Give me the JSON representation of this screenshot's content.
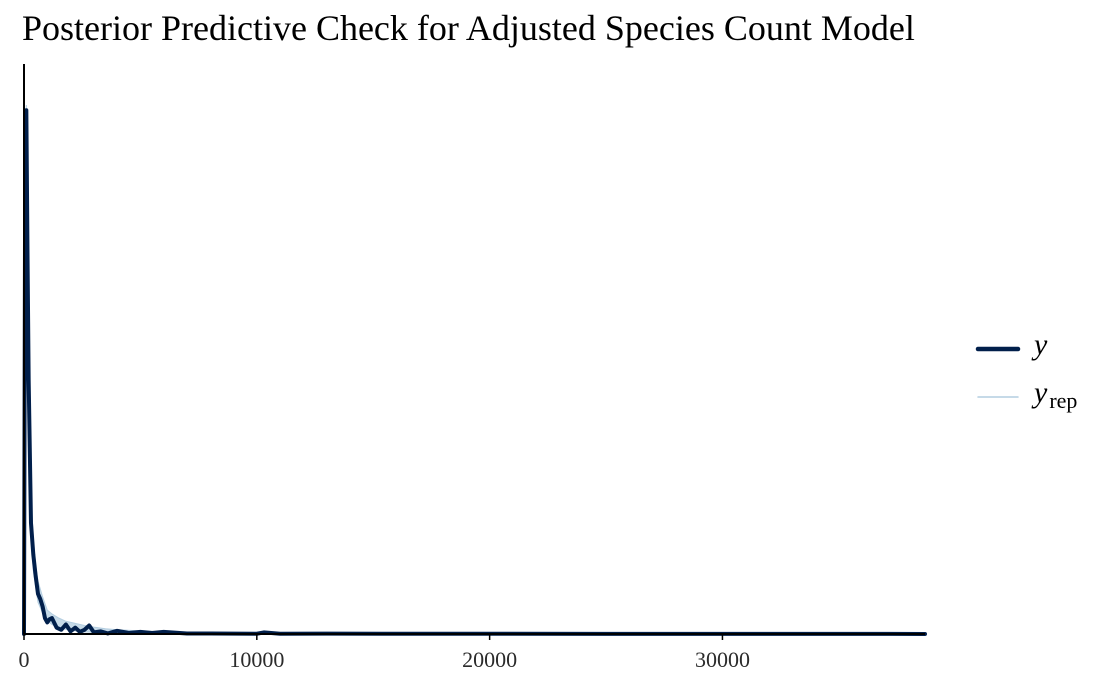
{
  "chart_data": {
    "type": "line",
    "title": "Posterior Predictive Check for Adjusted Species Count Model",
    "xlabel": "",
    "ylabel": "",
    "xlim": [
      0,
      38700
    ],
    "ylim": [
      0,
      1
    ],
    "x_ticks": [
      0,
      10000,
      20000,
      30000
    ],
    "x_tick_labels": [
      "0",
      "10000",
      "20000",
      "30000"
    ],
    "grid": false,
    "legend_position": "right",
    "series": [
      {
        "name": "y",
        "legend_main": "y",
        "legend_sub": "",
        "color": "#011f4b",
        "role": "observed",
        "x": [
          0,
          50,
          100,
          150,
          200,
          300,
          400,
          500,
          600,
          700,
          800,
          900,
          1000,
          1100,
          1200,
          1400,
          1600,
          1800,
          2000,
          2200,
          2400,
          2600,
          2800,
          3000,
          3300,
          3600,
          4000,
          4500,
          5000,
          5500,
          6000,
          7000,
          8000,
          10000,
          10300,
          11000,
          13000,
          16000,
          20000,
          25000,
          30000,
          35000,
          38700
        ],
        "y": [
          0.0,
          0.86,
          0.99,
          0.72,
          0.48,
          0.21,
          0.15,
          0.11,
          0.076,
          0.066,
          0.052,
          0.03,
          0.022,
          0.028,
          0.03,
          0.012,
          0.008,
          0.018,
          0.005,
          0.012,
          0.004,
          0.008,
          0.016,
          0.003,
          0.005,
          0.001,
          0.006,
          0.002,
          0.004,
          0.002,
          0.004,
          0.001,
          0.001,
          0.0005,
          0.003,
          0.0005,
          0.0008,
          0.0004,
          0.0004,
          0.0003,
          0.0002,
          0.0002,
          0.0001
        ]
      },
      {
        "name": "y_rep",
        "legend_main": "y",
        "legend_sub": "rep",
        "color": "#b3cde0",
        "role": "replicated",
        "x": [
          0,
          50,
          100,
          150,
          200,
          300,
          400,
          500,
          600,
          700,
          800,
          1000,
          1200,
          1500,
          1800,
          2200,
          2600,
          3000,
          3500,
          4000,
          5000,
          6000,
          7000,
          8000,
          10000,
          14000,
          20000,
          30000,
          38700
        ],
        "y_low": [
          0.0,
          0.7,
          0.85,
          0.6,
          0.4,
          0.18,
          0.12,
          0.09,
          0.06,
          0.05,
          0.04,
          0.025,
          0.018,
          0.012,
          0.009,
          0.006,
          0.004,
          0.003,
          0.002,
          0.0015,
          0.001,
          0.0006,
          0.0004,
          0.0003,
          0.0002,
          0.0001,
          0.0001,
          0.0,
          0.0
        ],
        "y_high": [
          0.0,
          0.95,
          1.0,
          0.8,
          0.56,
          0.26,
          0.18,
          0.13,
          0.1,
          0.085,
          0.07,
          0.045,
          0.038,
          0.03,
          0.024,
          0.02,
          0.016,
          0.013,
          0.01,
          0.008,
          0.006,
          0.004,
          0.003,
          0.002,
          0.0012,
          0.0007,
          0.0004,
          0.0002,
          0.0001
        ]
      }
    ]
  }
}
